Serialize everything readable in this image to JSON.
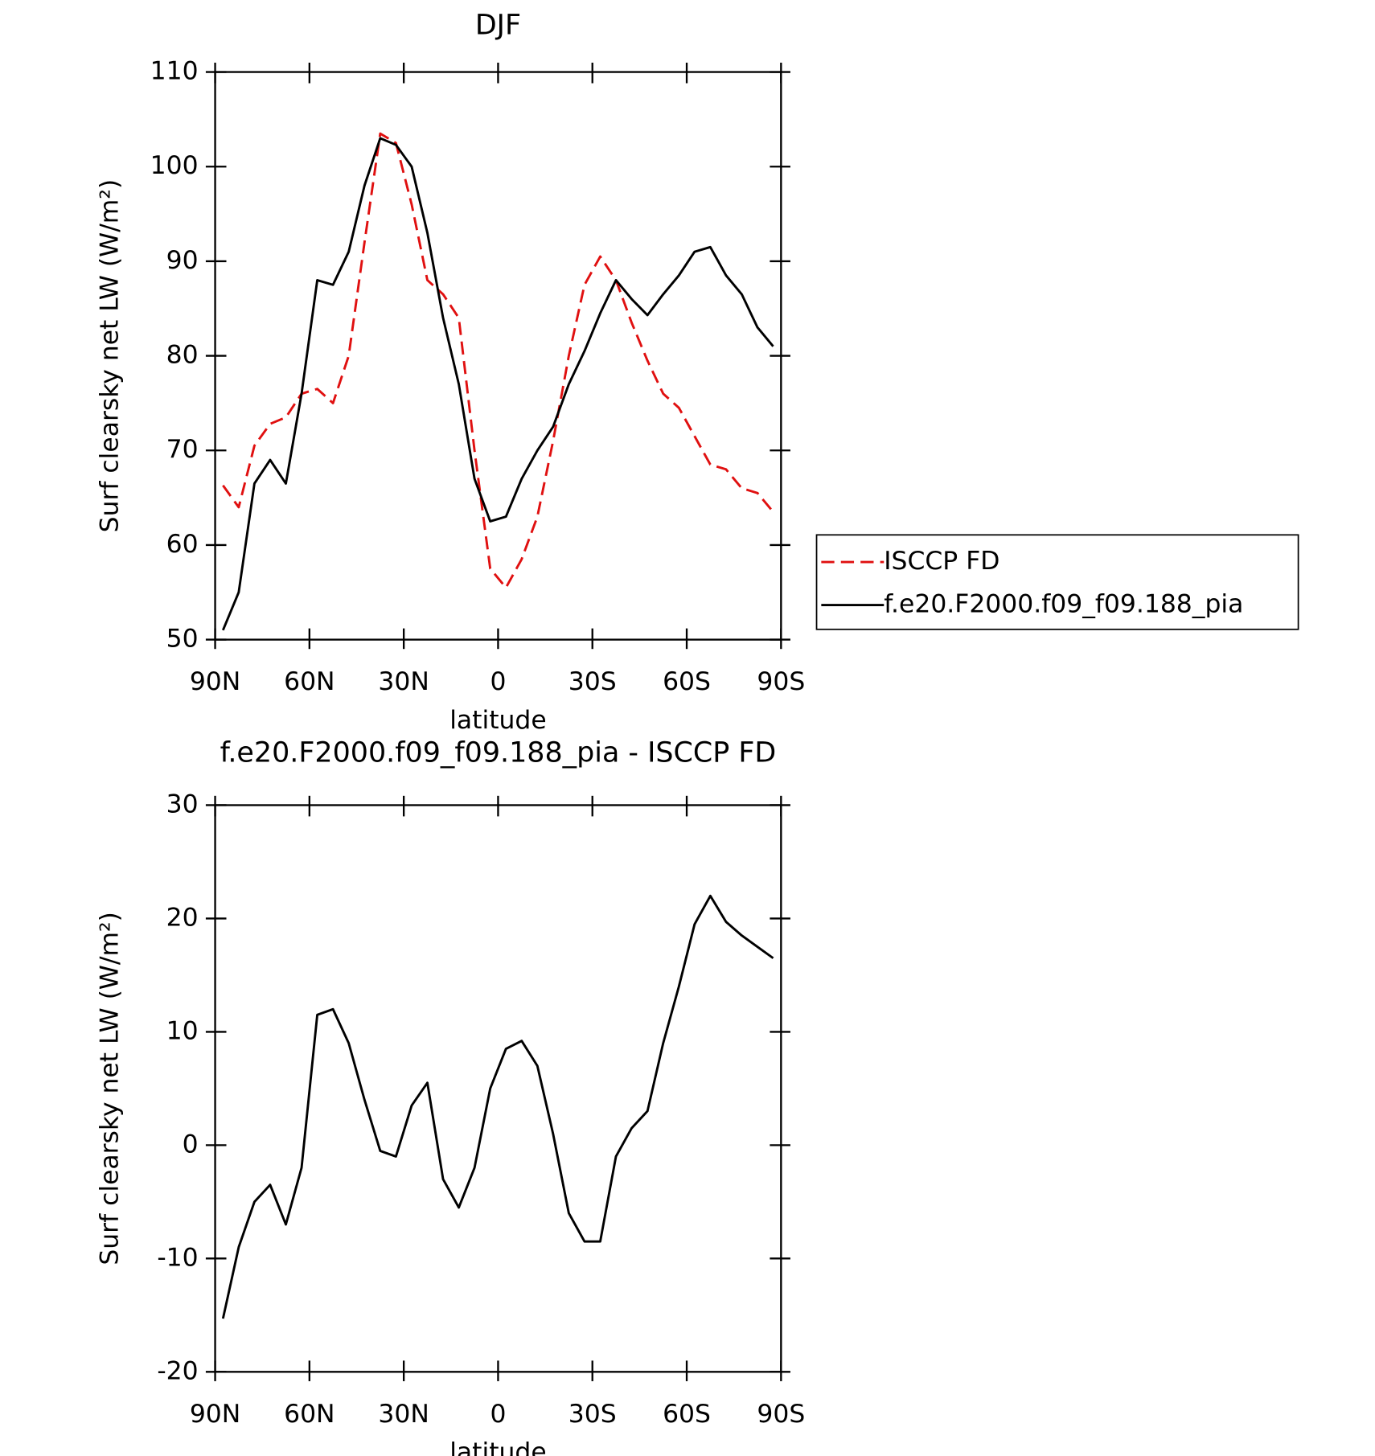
{
  "chart_data": [
    {
      "type": "line",
      "title": "DJF",
      "x_label": "latitude",
      "y_label": "Surf clearsky net LW (W/m²)",
      "x": [
        87.5,
        82.5,
        77.5,
        72.5,
        67.5,
        62.5,
        57.5,
        52.5,
        47.5,
        42.5,
        37.5,
        32.5,
        27.5,
        22.5,
        17.5,
        12.5,
        7.5,
        2.5,
        -2.5,
        -7.5,
        -12.5,
        -17.5,
        -22.5,
        -27.5,
        -32.5,
        -37.5,
        -42.5,
        -47.5,
        -52.5,
        -57.5,
        -62.5,
        -67.5,
        -72.5,
        -77.5,
        -82.5,
        -87.5
      ],
      "series": [
        {
          "name": "ISCCP FD",
          "color": "#e01010",
          "line_style": "dashed",
          "values": [
            66.3,
            64,
            70.5,
            72.8,
            73.5,
            76,
            76.5,
            75,
            80,
            92,
            103.5,
            102.5,
            96,
            88,
            86.5,
            84,
            70,
            57.5,
            55.5,
            58.5,
            63,
            71,
            80,
            87.5,
            90.5,
            88,
            83.5,
            79.5,
            76,
            74.5,
            71.5,
            68.5,
            68,
            66,
            65.5,
            63.5
          ]
        },
        {
          "name": "f.e20.F2000.f09_f09.188_pia",
          "color": "#000000",
          "line_style": "solid",
          "values": [
            51,
            55,
            66.5,
            69,
            66.5,
            76,
            88,
            87.5,
            91,
            98,
            103,
            102.3,
            100,
            93,
            84,
            77,
            67,
            62.5,
            63,
            67,
            70,
            72.5,
            77,
            80.5,
            84.5,
            88,
            86,
            84.3,
            86.5,
            88.5,
            91,
            91.5,
            88.5,
            86.5,
            83,
            81
          ]
        }
      ],
      "xlim": [
        90,
        -90
      ],
      "xticks": [
        {
          "value": 90,
          "label": "90N"
        },
        {
          "value": 60,
          "label": "60N"
        },
        {
          "value": 30,
          "label": "30N"
        },
        0,
        {
          "value": -30,
          "label": "30S"
        },
        {
          "value": -60,
          "label": "60S"
        },
        {
          "value": -90,
          "label": "90S"
        }
      ],
      "ylim": [
        50,
        110
      ],
      "yticks": [
        50,
        60,
        70,
        80,
        90,
        100,
        110
      ],
      "legend": "right"
    },
    {
      "type": "line",
      "title": "f.e20.F2000.f09_f09.188_pia - ISCCP FD",
      "x_label": "latitude",
      "y_label": "Surf clearsky net LW (W/m²)",
      "x": [
        87.5,
        82.5,
        77.5,
        72.5,
        67.5,
        62.5,
        57.5,
        52.5,
        47.5,
        42.5,
        37.5,
        32.5,
        27.5,
        22.5,
        17.5,
        12.5,
        7.5,
        2.5,
        -2.5,
        -7.5,
        -12.5,
        -17.5,
        -22.5,
        -27.5,
        -32.5,
        -37.5,
        -42.5,
        -47.5,
        -52.5,
        -57.5,
        -62.5,
        -67.5,
        -72.5,
        -77.5,
        -82.5,
        -87.5
      ],
      "series": [
        {
          "color": "#000000",
          "line_style": "solid",
          "values": [
            -15.3,
            -9,
            -5,
            -3.5,
            -7,
            -2,
            11.5,
            12,
            9,
            4,
            -0.5,
            -1,
            3.5,
            5.5,
            -3,
            -5.5,
            -2,
            5,
            8.5,
            9.2,
            7,
            1,
            -6,
            -8.5,
            -8.5,
            -1,
            1.5,
            3,
            9,
            14,
            19.5,
            22,
            19.7,
            18.5,
            17.5,
            16.5
          ]
        }
      ],
      "xlim": [
        90,
        -90
      ],
      "xticks": [
        {
          "value": 90,
          "label": "90N"
        },
        {
          "value": 60,
          "label": "60N"
        },
        {
          "value": 30,
          "label": "30N"
        },
        0,
        {
          "value": -30,
          "label": "30S"
        },
        {
          "value": -60,
          "label": "60S"
        },
        {
          "value": -90,
          "label": "90S"
        }
      ],
      "ylim": [
        -20,
        30
      ],
      "yticks": [
        -20,
        -10,
        0,
        10,
        20,
        30
      ]
    }
  ]
}
